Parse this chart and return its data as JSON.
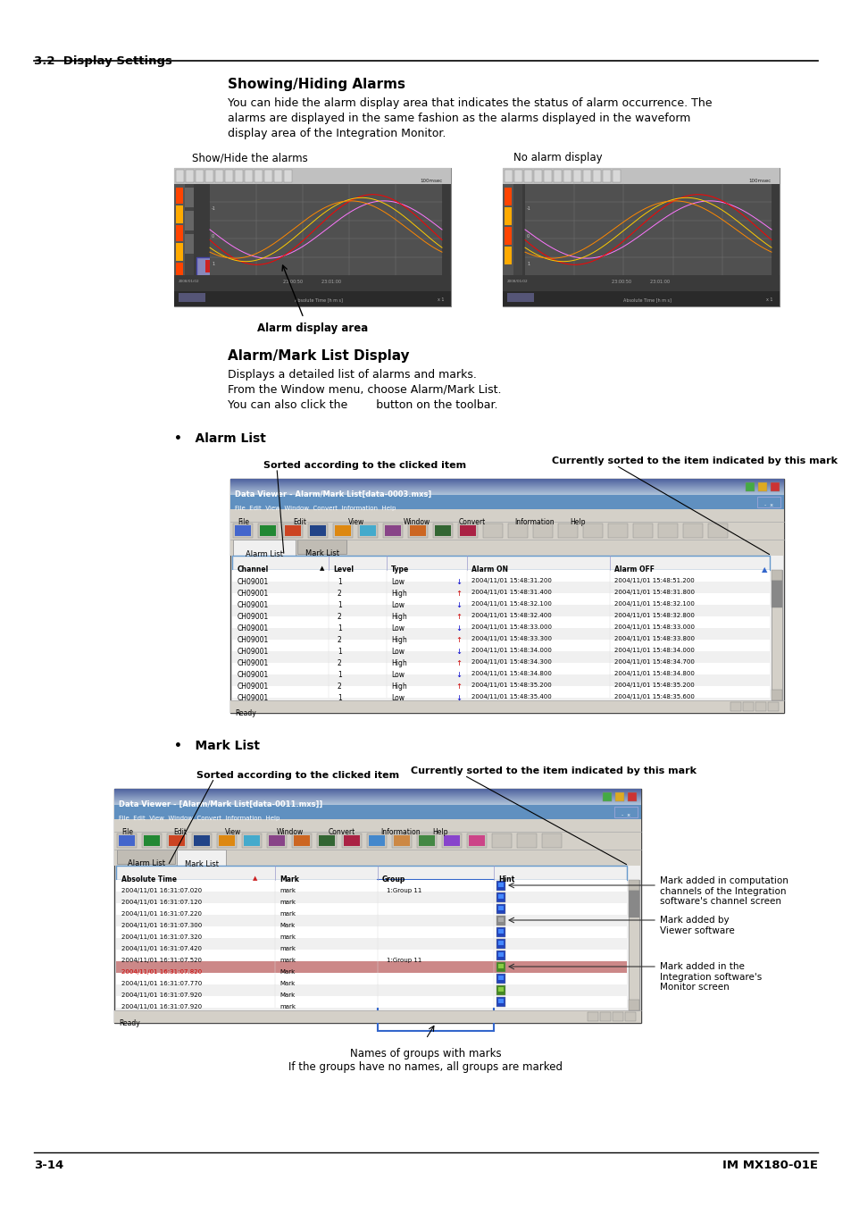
{
  "page_width": 9.54,
  "page_height": 13.5,
  "bg_color": "#ffffff",
  "header_section": "3.2  Display Settings",
  "footer_left": "3-14",
  "footer_right": "IM MX180-01E",
  "section1_title": "Showing/Hiding Alarms",
  "section1_body": [
    "You can hide the alarm display area that indicates the status of alarm occurrence. The",
    "alarms are displayed in the same fashion as the alarms displayed in the waveform",
    "display area of the Integration Monitor."
  ],
  "img1_label_left": "Show/Hide the alarms",
  "img1_label_right": "No alarm display",
  "img1_bottom_label": "Alarm display area",
  "section2_title": "Alarm/Mark List Display",
  "section2_body": [
    "Displays a detailed list of alarms and marks.",
    "From the Window menu, choose Alarm/Mark List.",
    "You can also click the        button on the toolbar."
  ],
  "bullet1_title": "Alarm List",
  "bullet1_sub_top": "Sorted according to the clicked item",
  "bullet1_sub_right": "Currently sorted to the item indicated by this mark",
  "bullet2_title": "Mark List",
  "bullet2_sub_top": "Sorted according to the clicked item",
  "bullet2_sub_right": "Currently sorted to the item indicated by this mark",
  "mark_note1": "Mark added in computation\nchannels of the Integration\nsoftware's channel screen",
  "mark_note2": "Mark added by\nViewer software",
  "mark_note3": "Mark added in the\nIntegration software's\nMonitor screen",
  "names_note": "Names of groups with marks\nIf the groups have no names, all groups are marked"
}
